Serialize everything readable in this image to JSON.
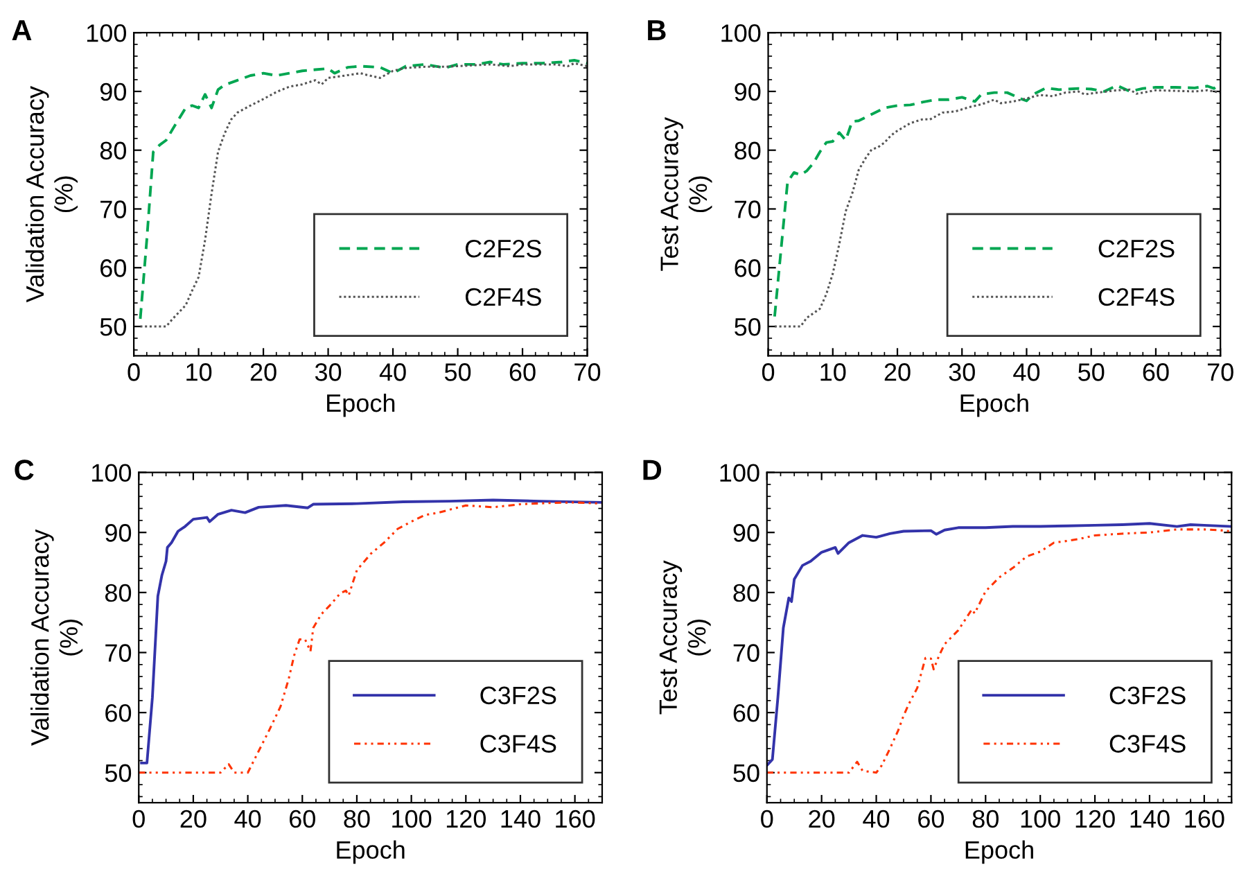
{
  "chart_data": [
    {
      "type": "line",
      "annotations": [
        "A"
      ],
      "xlabel": "Epoch",
      "ylabel": "Validation Accuracy\n(%)",
      "xlim": [
        0,
        70
      ],
      "ylim": [
        45,
        100
      ],
      "xticks": [
        0,
        10,
        20,
        30,
        40,
        50,
        60,
        70
      ],
      "yticks": [
        50,
        60,
        70,
        80,
        90,
        100
      ],
      "legend": "bottom right",
      "grid": false,
      "series": [
        {
          "name": "C2F2S",
          "color": "#00a651",
          "line_style": "dashed",
          "x": [
            1,
            2,
            3,
            4,
            5,
            6,
            7,
            8,
            9,
            10,
            11,
            12,
            13,
            14,
            16,
            18,
            20,
            22,
            24,
            26,
            28,
            30,
            31,
            33,
            35,
            38,
            40,
            42,
            45,
            48,
            50,
            53,
            55,
            57,
            60,
            63,
            66,
            68,
            70
          ],
          "values": [
            51.3,
            64.7,
            79.7,
            80.9,
            81.7,
            83.6,
            85.4,
            87.2,
            87.6,
            87.2,
            89.5,
            87.2,
            90.3,
            91.1,
            91.9,
            92.7,
            93.1,
            92.7,
            93.1,
            93.5,
            93.7,
            93.9,
            93.1,
            94.1,
            94.3,
            94.1,
            93.1,
            94.3,
            94.6,
            94.0,
            94.6,
            94.6,
            95.0,
            94.6,
            94.8,
            94.8,
            95.0,
            95.3,
            94.8
          ]
        },
        {
          "name": "C2F4S",
          "color": "#555555",
          "line_style": "dotted",
          "x": [
            1,
            5,
            6,
            8,
            9,
            10,
            11,
            12,
            13,
            14,
            15,
            16,
            17,
            18,
            20,
            22,
            24,
            26,
            28,
            29,
            30,
            32,
            35,
            36,
            38,
            40,
            42,
            45,
            48,
            50,
            55,
            58,
            60,
            65,
            67,
            68,
            70
          ],
          "values": [
            50,
            50,
            51.3,
            53.6,
            56.1,
            58.4,
            64.7,
            72.6,
            79.7,
            82.8,
            85.2,
            86.4,
            87.0,
            87.6,
            88.7,
            89.9,
            90.8,
            91.2,
            91.9,
            91.2,
            92.3,
            92.6,
            93.1,
            92.8,
            92.3,
            93.5,
            94.0,
            94.2,
            94.2,
            94.3,
            94.6,
            94.3,
            94.6,
            94.6,
            94.3,
            94.8,
            94.3
          ]
        }
      ]
    },
    {
      "type": "line",
      "annotations": [
        "B"
      ],
      "xlabel": "Epoch",
      "ylabel": "Test Accuracy\n(%)",
      "xlim": [
        0,
        70
      ],
      "ylim": [
        45,
        100
      ],
      "xticks": [
        0,
        10,
        20,
        30,
        40,
        50,
        60,
        70
      ],
      "yticks": [
        50,
        60,
        70,
        80,
        90,
        100
      ],
      "legend": "bottom right",
      "grid": false,
      "series": [
        {
          "name": "C2F2S",
          "color": "#00a651",
          "line_style": "dashed",
          "x": [
            1,
            2,
            3,
            4,
            5,
            6,
            7,
            8,
            9,
            10,
            11,
            12,
            13,
            14,
            16,
            18,
            20,
            22,
            24,
            26,
            28,
            30,
            32,
            33,
            35,
            37,
            39,
            40,
            41,
            43,
            45,
            48,
            50,
            52,
            54,
            56,
            58,
            60,
            63,
            66,
            68,
            69,
            70
          ],
          "values": [
            51.7,
            63.2,
            74.6,
            76.2,
            75.8,
            76.5,
            77.8,
            79.7,
            81.3,
            81.5,
            83.0,
            81.7,
            84.9,
            85.0,
            86.1,
            87.2,
            87.6,
            87.7,
            88.2,
            88.6,
            88.6,
            89.0,
            88.3,
            89.5,
            89.8,
            89.8,
            88.8,
            88.4,
            89.5,
            90.6,
            90.3,
            90.5,
            90.4,
            90.0,
            91.0,
            90.0,
            90.5,
            90.7,
            90.7,
            90.6,
            90.9,
            90.5,
            91.2
          ]
        },
        {
          "name": "C2F4S",
          "color": "#555555",
          "line_style": "dotted",
          "x": [
            1,
            5,
            6,
            8,
            9,
            10,
            11,
            12,
            13,
            14,
            15,
            16,
            17,
            18,
            19,
            20,
            22,
            24,
            25,
            27,
            29,
            31,
            33,
            35,
            36,
            38,
            40,
            42,
            44,
            46,
            48,
            49,
            51,
            54,
            56,
            57,
            60,
            63,
            66,
            68,
            70
          ],
          "values": [
            50,
            50,
            51.5,
            53,
            55.5,
            59,
            64,
            69.6,
            72.6,
            76.6,
            78.5,
            80.1,
            80.5,
            81.3,
            82.5,
            83.3,
            84.6,
            85.3,
            85.2,
            86.4,
            86.6,
            87.3,
            87.8,
            88.6,
            88.0,
            88.3,
            88.8,
            89.4,
            89.2,
            89.8,
            90.0,
            89.5,
            89.8,
            90.2,
            90.3,
            89.6,
            90.2,
            90.1,
            90.0,
            90.2,
            89.8
          ]
        }
      ]
    },
    {
      "type": "line",
      "annotations": [
        "C"
      ],
      "xlabel": "Epoch",
      "ylabel": "Validation Accuracy\n(%)",
      "xlim": [
        0,
        170
      ],
      "ylim": [
        45,
        100
      ],
      "xticks": [
        0,
        20,
        40,
        60,
        80,
        100,
        120,
        140,
        160
      ],
      "yticks": [
        50,
        60,
        70,
        80,
        90,
        100
      ],
      "legend": "bottom right",
      "grid": false,
      "series": [
        {
          "name": "C3F2S",
          "color": "#3333aa",
          "line_style": "solid",
          "x": [
            1,
            3,
            5,
            7,
            8.5,
            10,
            10.5,
            12,
            14.4,
            17,
            20,
            25,
            26,
            29,
            34,
            39,
            44,
            54,
            62,
            64,
            80,
            97,
            114,
            130,
            147,
            170
          ],
          "values": [
            51.6,
            51.6,
            62.5,
            79.4,
            82.9,
            85.2,
            87.5,
            88.3,
            90.2,
            91.0,
            92.2,
            92.5,
            91.8,
            93.0,
            93.7,
            93.3,
            94.2,
            94.5,
            94.1,
            94.7,
            94.8,
            95.1,
            95.2,
            95.4,
            95.2,
            95.0
          ]
        },
        {
          "name": "C3F4S",
          "color": "#ff3300",
          "line_style": "dashdot",
          "x": [
            0,
            30,
            33,
            35,
            40,
            42,
            45,
            48,
            52,
            55,
            57,
            59,
            61,
            63,
            64,
            67,
            70,
            74,
            76,
            77,
            80,
            85,
            90,
            95,
            100,
            105,
            110,
            115,
            120,
            130,
            140,
            150,
            160,
            170
          ],
          "values": [
            50,
            50,
            51.4,
            50,
            50,
            51.8,
            54.5,
            57.2,
            61,
            65.6,
            69.5,
            72.2,
            72.2,
            70.2,
            74.1,
            76.4,
            77.8,
            79.9,
            80.3,
            79.5,
            83.7,
            86.4,
            88.3,
            90.6,
            91.8,
            92.9,
            93.3,
            93.9,
            94.5,
            94.2,
            94.7,
            94.9,
            95.0,
            94.8
          ]
        }
      ]
    },
    {
      "type": "line",
      "annotations": [
        "D"
      ],
      "xlabel": "Epoch",
      "ylabel": "Test Accuracy\n(%)",
      "xlim": [
        0,
        170
      ],
      "ylim": [
        45,
        100
      ],
      "xticks": [
        0,
        20,
        40,
        60,
        80,
        100,
        120,
        140,
        160
      ],
      "yticks": [
        50,
        60,
        70,
        80,
        90,
        100
      ],
      "legend": "bottom right",
      "grid": false,
      "series": [
        {
          "name": "C3F2S",
          "color": "#3333aa",
          "line_style": "solid",
          "x": [
            0,
            2,
            4,
            6,
            8,
            9,
            10,
            13,
            16,
            20,
            25,
            26,
            30,
            35,
            40,
            45,
            50,
            60,
            62,
            65,
            70,
            80,
            90,
            100,
            110,
            120,
            130,
            140,
            150,
            155,
            160,
            170
          ],
          "values": [
            51.2,
            52.2,
            62.5,
            74.1,
            79.1,
            78.5,
            82.2,
            84.5,
            85.2,
            86.7,
            87.5,
            86.5,
            88.3,
            89.5,
            89.2,
            89.8,
            90.2,
            90.3,
            89.7,
            90.4,
            90.8,
            90.8,
            91.0,
            91.0,
            91.1,
            91.2,
            91.3,
            91.5,
            91.0,
            91.3,
            91.2,
            91.0
          ]
        },
        {
          "name": "C3F4S",
          "color": "#ff3300",
          "line_style": "dashdot",
          "x": [
            0,
            30,
            33,
            35,
            40,
            42,
            45,
            48,
            50,
            52,
            55,
            58,
            60,
            61,
            63,
            65,
            70,
            75,
            76,
            80,
            85,
            90,
            95,
            100,
            105,
            110,
            115,
            120,
            130,
            140,
            150,
            160,
            165,
            170
          ],
          "values": [
            50,
            50,
            51.8,
            50.3,
            50,
            51.2,
            54,
            57,
            59.5,
            61.5,
            64.1,
            69.1,
            69,
            67.2,
            69.5,
            71.4,
            73.7,
            77.2,
            76.5,
            80.2,
            82.5,
            84.1,
            86.0,
            86.8,
            88.3,
            88.6,
            89.0,
            89.5,
            89.8,
            90.0,
            90.5,
            90.5,
            90.4,
            90.2
          ]
        }
      ]
    }
  ]
}
